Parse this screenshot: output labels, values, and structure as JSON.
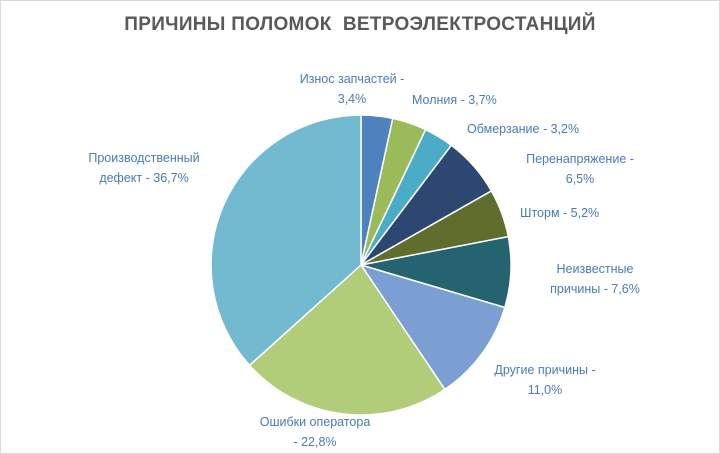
{
  "chart_data": {
    "type": "pie",
    "title": "ПРИЧИНЫ ПОЛОМОК  ВЕТРОЭЛЕКТРОСТАНЦИЙ",
    "slices": [
      {
        "label": "Износ запчастей",
        "value": 3.4,
        "value_label": "3,4%",
        "color": "#4f81bd"
      },
      {
        "label": "Молния",
        "value": 3.7,
        "value_label": "3,7%",
        "color": "#9bbb59"
      },
      {
        "label": "Обмерзание",
        "value": 3.2,
        "value_label": "3,2%",
        "color": "#4bacc6"
      },
      {
        "label": "Перенапряжение",
        "value": 6.5,
        "value_label": "6,5%",
        "color": "#2c4770"
      },
      {
        "label": "Шторм",
        "value": 5.2,
        "value_label": "5,2%",
        "color": "#5f6e2d"
      },
      {
        "label": "Неизвестные причины",
        "value": 7.6,
        "value_label": "7,6%",
        "color": "#24636f"
      },
      {
        "label": "Другие причины",
        "value": 11.0,
        "value_label": "11,0%",
        "color": "#7b9fd3"
      },
      {
        "label": "Ошибки оператора",
        "value": 22.8,
        "value_label": "22,8%",
        "color": "#b1cd7a"
      },
      {
        "label": "Производственный дефект",
        "value": 36.7,
        "value_label": "36,7%",
        "color": "#72bad0"
      }
    ],
    "data_labels": [
      {
        "lines": [
          "Износ запчастей  -",
          "3,4%"
        ]
      },
      {
        "lines": [
          "Молния  - 3,7%"
        ]
      },
      {
        "lines": [
          "Обмерзание - 3,2%"
        ]
      },
      {
        "lines": [
          "Перенапряжение  -",
          "6,5%"
        ]
      },
      {
        "lines": [
          "Шторм - 5,2%"
        ]
      },
      {
        "lines": [
          "Неизвестные",
          "причины  - 7,6%"
        ]
      },
      {
        "lines": [
          "Другие причины  -",
          "11,0%"
        ]
      },
      {
        "lines": [
          "Ошибки  оператора",
          "-  22,8%"
        ]
      },
      {
        "lines": [
          "Производственный",
          "дефект - 36,7%"
        ]
      }
    ],
    "legend": "none",
    "grid": false
  }
}
